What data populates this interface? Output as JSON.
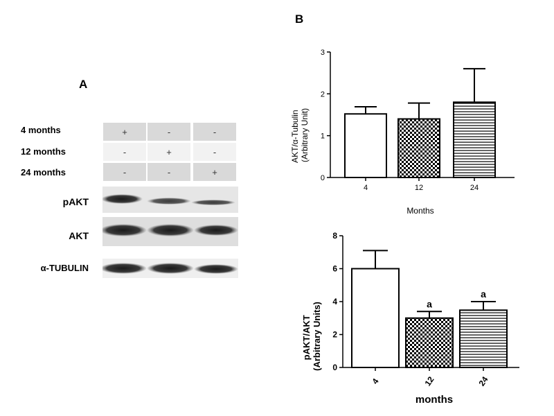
{
  "panel_a": {
    "letter": "A",
    "conditions": [
      {
        "label": "4 months",
        "marks": [
          "+",
          "-",
          "-"
        ]
      },
      {
        "label": "12 months",
        "marks": [
          "-",
          "+",
          "-"
        ]
      },
      {
        "label": "24 months",
        "marks": [
          "-",
          "-",
          "+"
        ]
      }
    ],
    "bands": [
      "pAKT",
      "AKT",
      "α-TUBULIN"
    ]
  },
  "panel_b": {
    "letter": "B"
  },
  "chart_data": [
    {
      "type": "bar",
      "categories": [
        "4",
        "12",
        "24"
      ],
      "values": [
        1.52,
        1.4,
        1.8
      ],
      "errors": [
        0.17,
        0.38,
        0.8
      ],
      "patterns": [
        "solid-white",
        "checker",
        "horizontal-lines"
      ],
      "annotations": [
        "",
        "",
        ""
      ],
      "xlabel": "Months",
      "ylabel_line1": "AKT/α-Tubulin",
      "ylabel_line2": "(Arbitrary Unit)",
      "ylim": [
        0,
        3
      ],
      "yticks": [
        "0",
        "1",
        "2",
        "3"
      ],
      "grid": false
    },
    {
      "type": "bar",
      "categories": [
        "4",
        "12",
        "24"
      ],
      "values": [
        6.0,
        3.0,
        3.48
      ],
      "errors": [
        1.1,
        0.4,
        0.52
      ],
      "patterns": [
        "solid-white",
        "checker",
        "horizontal-lines"
      ],
      "annotations": [
        "",
        "a",
        "a"
      ],
      "xlabel": "months",
      "ylabel_line1": "pAKT/AKT",
      "ylabel_line2": "(Arbitrary Units)",
      "ylim": [
        0,
        8
      ],
      "yticks": [
        "0",
        "2",
        "4",
        "6",
        "8"
      ],
      "grid": false
    }
  ]
}
